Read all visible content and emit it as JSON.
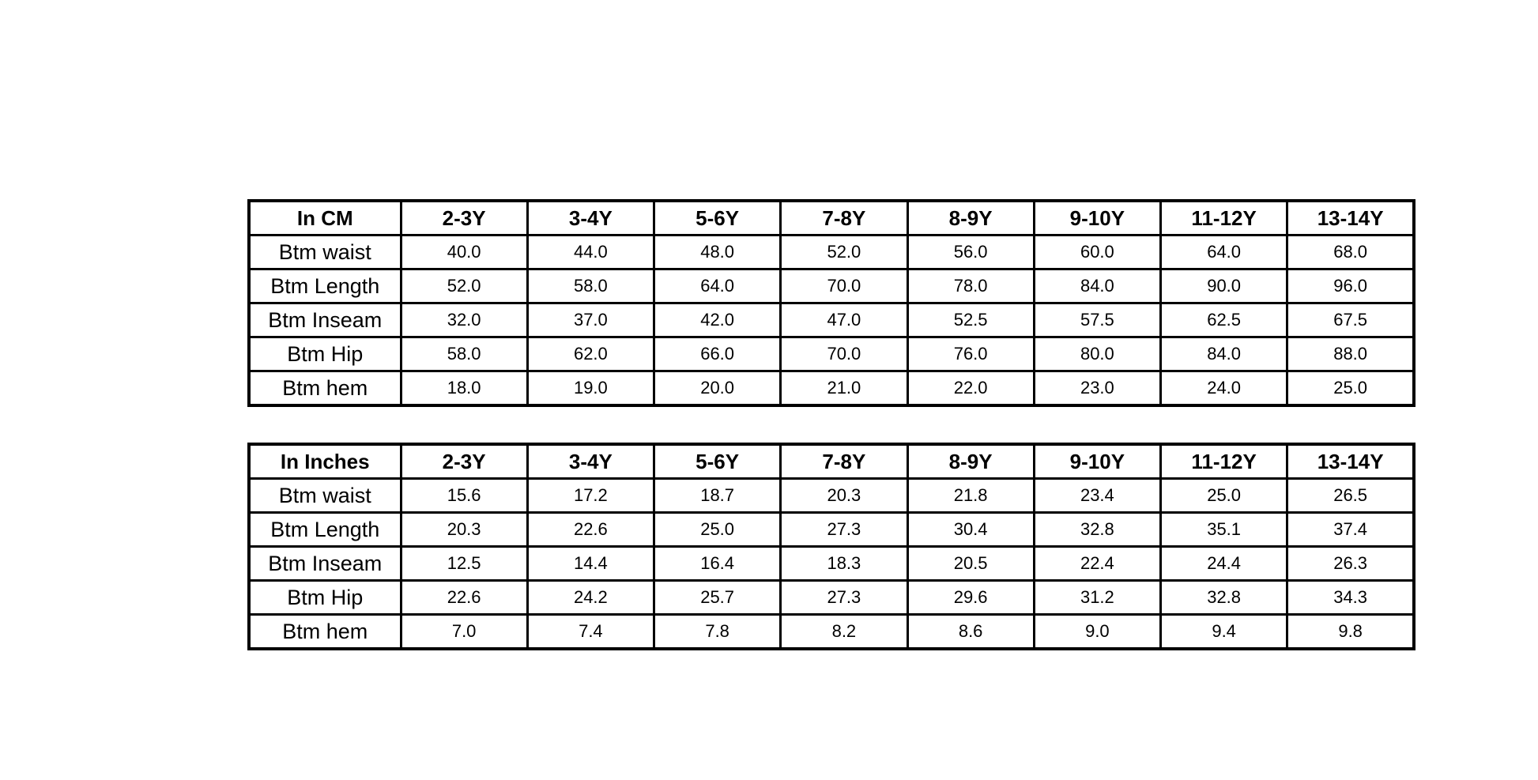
{
  "page": {
    "background_color": "#ffffff",
    "border_color": "#000000",
    "text_color": "#000000"
  },
  "chart_data": [
    {
      "type": "table",
      "title": "In CM",
      "columns": [
        "2-3Y",
        "3-4Y",
        "5-6Y",
        "7-8Y",
        "8-9Y",
        "9-10Y",
        "11-12Y",
        "13-14Y"
      ],
      "row_labels": [
        "Btm waist",
        "Btm Length",
        "Btm Inseam",
        "Btm Hip",
        "Btm hem"
      ],
      "rows": [
        [
          "40.0",
          "44.0",
          "48.0",
          "52.0",
          "56.0",
          "60.0",
          "64.0",
          "68.0"
        ],
        [
          "52.0",
          "58.0",
          "64.0",
          "70.0",
          "78.0",
          "84.0",
          "90.0",
          "96.0"
        ],
        [
          "32.0",
          "37.0",
          "42.0",
          "47.0",
          "52.5",
          "57.5",
          "62.5",
          "67.5"
        ],
        [
          "58.0",
          "62.0",
          "66.0",
          "70.0",
          "76.0",
          "80.0",
          "84.0",
          "88.0"
        ],
        [
          "18.0",
          "19.0",
          "20.0",
          "21.0",
          "22.0",
          "23.0",
          "24.0",
          "25.0"
        ]
      ]
    },
    {
      "type": "table",
      "title": "In Inches",
      "columns": [
        "2-3Y",
        "3-4Y",
        "5-6Y",
        "7-8Y",
        "8-9Y",
        "9-10Y",
        "11-12Y",
        "13-14Y"
      ],
      "row_labels": [
        "Btm waist",
        "Btm Length",
        "Btm Inseam",
        "Btm Hip",
        "Btm hem"
      ],
      "rows": [
        [
          "15.6",
          "17.2",
          "18.7",
          "20.3",
          "21.8",
          "23.4",
          "25.0",
          "26.5"
        ],
        [
          "20.3",
          "22.6",
          "25.0",
          "27.3",
          "30.4",
          "32.8",
          "35.1",
          "37.4"
        ],
        [
          "12.5",
          "14.4",
          "16.4",
          "18.3",
          "20.5",
          "22.4",
          "24.4",
          "26.3"
        ],
        [
          "22.6",
          "24.2",
          "25.7",
          "27.3",
          "29.6",
          "31.2",
          "32.8",
          "34.3"
        ],
        [
          "7.0",
          "7.4",
          "7.8",
          "8.2",
          "8.6",
          "9.0",
          "9.4",
          "9.8"
        ]
      ]
    }
  ]
}
